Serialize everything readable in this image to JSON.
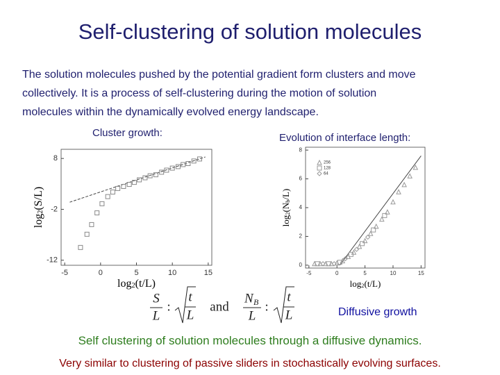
{
  "title": "Self-clustering of solution molecules",
  "paragraph": [
    "The solution molecules pushed by the potential gradient form clusters and move",
    "collectively. It is a process of self-clustering during the motion of solution",
    "molecules within the dynamically evolved energy landscape."
  ],
  "captions": [
    "Cluster growth:",
    "Evolution of interface length:"
  ],
  "plots": [
    {
      "type": "scatter",
      "marker": "square",
      "xlim": [
        -5.5,
        15.5
      ],
      "ylim": [
        -13,
        9.8
      ],
      "xticks": [
        -5,
        0,
        5,
        10,
        15
      ],
      "yticks": [
        -12,
        -2,
        8
      ],
      "x_label": {
        "base": "log",
        "sub": "2",
        "rest": "(t/L)"
      },
      "y_label": {
        "base": "log",
        "sub": "2",
        "rest": "(S/L)"
      },
      "series": [
        {
          "color": "#888888",
          "x": [
            -2.8,
            -1.9,
            -1.25,
            -0.5,
            0.2,
            1.0,
            1.7,
            2.4,
            3.2,
            4.0,
            4.7,
            5.4,
            6.2,
            6.9,
            7.7,
            8.5,
            9.2,
            10.0,
            10.8,
            11.5,
            12.2,
            13.0,
            13.8
          ],
          "values": [
            -9.5,
            -6.9,
            -5.0,
            -2.7,
            -0.9,
            0.5,
            1.4,
            2.1,
            2.5,
            2.9,
            3.3,
            3.8,
            4.2,
            4.6,
            4.8,
            5.3,
            5.7,
            6.1,
            6.4,
            6.8,
            7.0,
            7.5,
            7.9
          ]
        }
      ],
      "fit": {
        "x": [
          -4.3,
          14.6
        ],
        "values": [
          -0.6,
          8.3
        ],
        "dashed": true
      }
    },
    {
      "type": "scatter",
      "xlim": [
        -5.6,
        15.7
      ],
      "ylim": [
        -0.2,
        8.2
      ],
      "xticks": [
        -5,
        0,
        5,
        10,
        15
      ],
      "yticks": [
        0,
        2,
        4,
        6,
        8
      ],
      "x_label": {
        "base": "log",
        "sub": "2",
        "rest": "(t/L)"
      },
      "y_label": {
        "base": "log",
        "sub": "2",
        "rest": "(N",
        "sub2": "b",
        "rest2": "/L)"
      },
      "series": [
        {
          "name": "256",
          "marker": "triangle",
          "color": "#999999",
          "x": [
            -4,
            -3,
            -2,
            -1,
            0,
            1,
            2,
            3,
            4,
            5,
            6,
            7,
            8,
            9,
            10,
            11,
            12,
            13,
            14
          ],
          "values": [
            0.1,
            0.1,
            0.1,
            0.1,
            0.15,
            0.3,
            0.6,
            0.9,
            1.3,
            1.7,
            2.2,
            2.7,
            3.2,
            3.7,
            4.4,
            5.1,
            5.6,
            6.2,
            6.8
          ]
        },
        {
          "name": "128",
          "marker": "square",
          "color": "#999999",
          "x": [
            -3.5,
            -1.5,
            0.5,
            2.5,
            4.5,
            6.5,
            8.5
          ],
          "values": [
            0.1,
            0.1,
            0.2,
            0.75,
            1.5,
            2.45,
            3.45
          ]
        },
        {
          "name": "64",
          "marker": "diamond",
          "color": "#999999",
          "x": [
            -2.5,
            -0.5,
            1.5,
            3.5,
            5.5
          ],
          "values": [
            0.1,
            0.1,
            0.45,
            1.1,
            1.95
          ]
        }
      ],
      "fit": {
        "x": [
          0.5,
          15
        ],
        "values": [
          0,
          7.6
        ],
        "dashed": false
      },
      "legend": "upper left"
    }
  ],
  "formula": {
    "left": {
      "num": "S",
      "den": "L",
      "colon": ":",
      "t": "t",
      "tden": "L"
    },
    "and": "and",
    "right": {
      "num": "N",
      "numsub": "B",
      "den": "L",
      "colon": ":",
      "t": "t",
      "tden": "L"
    }
  },
  "note": "Diffusive growth",
  "conclusion": "Self clustering of solution molecules through a diffusive dynamics.",
  "footer": "Very similar to clustering of passive sliders in stochastically evolving surfaces."
}
